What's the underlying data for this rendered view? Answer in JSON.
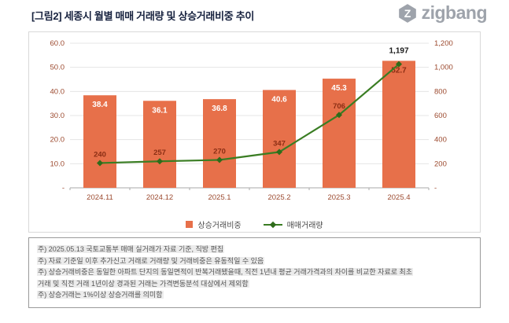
{
  "header": {
    "title": "[그림2] 세종시 월별 매매 거래량 및 상승거래비중 추이",
    "logo_text": "zigbang"
  },
  "chart_data": {
    "type": "bar",
    "title": "세종시 월별 매매 거래량 및 상승거래비중 추이",
    "categories": [
      "2024.11",
      "2024.12",
      "2025.1",
      "2025.2",
      "2025.3",
      "2025.4"
    ],
    "series": [
      {
        "name": "상승거래비중",
        "type": "bar",
        "axis": "left",
        "color": "#E7704A",
        "values": [
          38.4,
          36.1,
          36.8,
          40.6,
          45.3,
          52.7
        ]
      },
      {
        "name": "매매거래량",
        "type": "line",
        "axis": "right",
        "color": "#3A7D23",
        "values": [
          240,
          257,
          270,
          347,
          706,
          1197
        ]
      }
    ],
    "left_axis": {
      "min": 0,
      "max": 60,
      "step": 10,
      "labels": [
        "-",
        "10.0",
        "20.0",
        "30.0",
        "40.0",
        "50.0",
        "60.0"
      ]
    },
    "right_axis": {
      "min": 0,
      "max": 1400,
      "step": 200,
      "labels": [
        "-",
        "200",
        "400",
        "600",
        "800",
        "1,000",
        "1,200",
        "1,400"
      ]
    },
    "legend": [
      {
        "label": "상승거래비중",
        "type": "bar",
        "color": "#E7704A"
      },
      {
        "label": "매매거래량",
        "type": "line",
        "color": "#3A7D23"
      }
    ],
    "grid": true,
    "legend_position": "bottom"
  },
  "footnotes": [
    "주) 2025.05.13 국토교통부 매매 실거래가 자료 기준, 직방 편집",
    "주) 자료 기준일 이후 추가신고 거래로 거래량 및 거래비중은 유동적일 수 있음",
    "주) 상승거래비중은 동일한 아파트 단지의 동일면적이 반복거래됐을때, 직전 1년내 평균 거래가격과의 차이를 비교한 자료로 최초",
    "거래 및 직전 거래 1년이상 경과된 거래는 가격변동분석 대상에서 제외함",
    "주) 상승거래는 1%이상 상승거래를 의미함"
  ]
}
